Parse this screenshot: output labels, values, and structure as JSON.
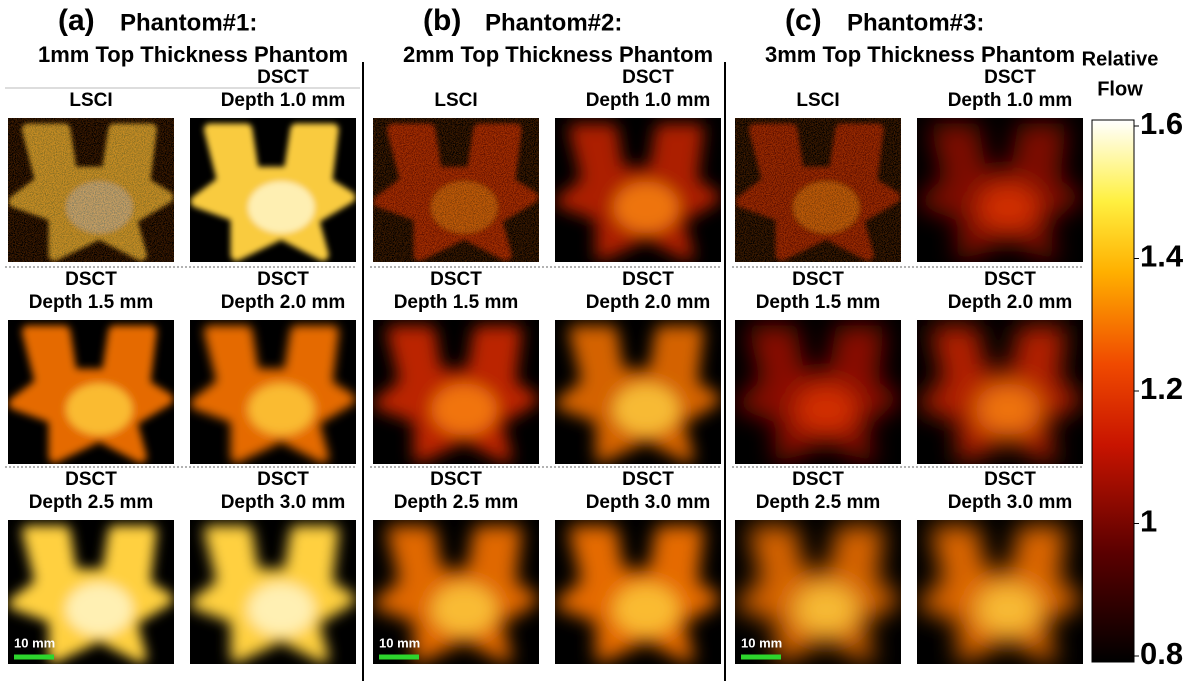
{
  "panels": [
    {
      "letter": "(a)",
      "title": "Phantom#1:",
      "subtitle": "1mm Top Thickness Phantom",
      "images": [
        {
          "lines": [
            "LSCI"
          ]
        },
        {
          "lines": [
            "DSCT",
            "Depth 1.0 mm"
          ]
        },
        {
          "lines": [
            "DSCT",
            "Depth 1.5 mm"
          ]
        },
        {
          "lines": [
            "DSCT",
            "Depth 2.0 mm"
          ]
        },
        {
          "lines": [
            "DSCT",
            "Depth 2.5 mm"
          ]
        },
        {
          "lines": [
            "DSCT",
            "Depth 3.0 mm"
          ]
        }
      ],
      "scale_bar": "10 mm"
    },
    {
      "letter": "(b)",
      "title": "Phantom#2:",
      "subtitle": "2mm Top Thickness Phantom",
      "images": [
        {
          "lines": [
            "LSCI"
          ]
        },
        {
          "lines": [
            "DSCT",
            "Depth 1.0 mm"
          ]
        },
        {
          "lines": [
            "DSCT",
            "Depth 1.5 mm"
          ]
        },
        {
          "lines": [
            "DSCT",
            "Depth 2.0 mm"
          ]
        },
        {
          "lines": [
            "DSCT",
            "Depth 2.5 mm"
          ]
        },
        {
          "lines": [
            "DSCT",
            "Depth 3.0 mm"
          ]
        }
      ],
      "scale_bar": "10 mm"
    },
    {
      "letter": "(c)",
      "title": "Phantom#3:",
      "subtitle": "3mm Top Thickness Phantom",
      "images": [
        {
          "lines": [
            "LSCI"
          ]
        },
        {
          "lines": [
            "DSCT",
            "Depth 1.0 mm"
          ]
        },
        {
          "lines": [
            "DSCT",
            "Depth 1.5 mm"
          ]
        },
        {
          "lines": [
            "DSCT",
            "Depth 2.0 mm"
          ]
        },
        {
          "lines": [
            "DSCT",
            "Depth 2.5 mm"
          ]
        },
        {
          "lines": [
            "DSCT",
            "Depth 3.0 mm"
          ]
        }
      ],
      "scale_bar": "10 mm"
    }
  ],
  "colorbar": {
    "title": [
      "Relative",
      "Flow"
    ],
    "ticks": [
      1.6,
      1.4,
      1.2,
      1,
      0.8
    ]
  }
}
